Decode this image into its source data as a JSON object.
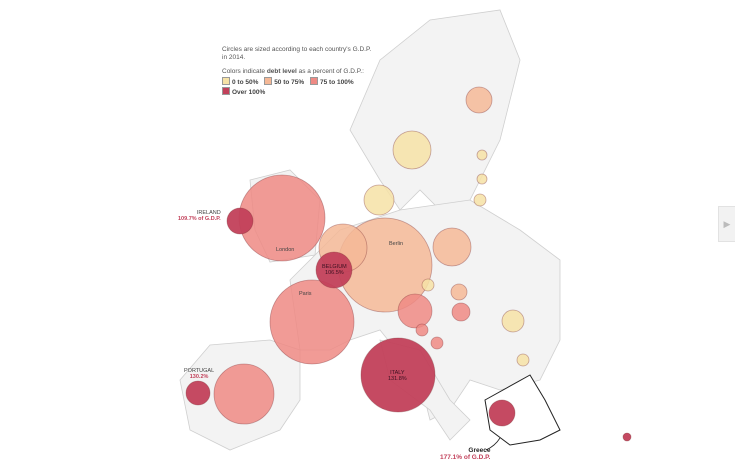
{
  "legend": {
    "size_note": "Circles are sized according to each country's G.D.P. in 2014.",
    "color_note_pre": "Colors indicate ",
    "color_note_bold": "debt level",
    "color_note_post": " as a percent of G.D.P.:",
    "keys": [
      {
        "label": "0 to 50%",
        "color": "#f6e2a6"
      },
      {
        "label": "50 to 75%",
        "color": "#f5b896"
      },
      {
        "label": "75 to 100%",
        "color": "#ee8a84"
      },
      {
        "label": "Over 100%",
        "color": "#c2405a"
      }
    ]
  },
  "labels": {
    "ireland": {
      "name": "IRELAND",
      "value": "109.7% of G.D.P."
    },
    "belgium": {
      "name": "BELGIUM",
      "value": "106.5%"
    },
    "portugal": {
      "name": "PORTUGAL",
      "value": "130.2%"
    },
    "italy": {
      "name": "ITALY",
      "value": "131.8%"
    },
    "greece": {
      "name": "Greece",
      "value": "177.1% of G.D.P."
    },
    "london": "London",
    "paris": "Paris",
    "berlin": "Berlin"
  },
  "countries": [
    {
      "name": "united-kingdom",
      "debt_class": "75 to 100%"
    },
    {
      "name": "ireland",
      "debt_class": "Over 100%"
    },
    {
      "name": "france",
      "debt_class": "75 to 100%"
    },
    {
      "name": "spain",
      "debt_class": "75 to 100%"
    },
    {
      "name": "portugal",
      "debt_class": "Over 100%"
    },
    {
      "name": "italy",
      "debt_class": "Over 100%"
    },
    {
      "name": "germany",
      "debt_class": "50 to 75%"
    },
    {
      "name": "netherlands",
      "debt_class": "50 to 75%"
    },
    {
      "name": "belgium",
      "debt_class": "Over 100%"
    },
    {
      "name": "poland",
      "debt_class": "50 to 75%"
    },
    {
      "name": "sweden",
      "debt_class": "0 to 50%"
    },
    {
      "name": "denmark",
      "debt_class": "0 to 50%"
    },
    {
      "name": "finland",
      "debt_class": "50 to 75%"
    },
    {
      "name": "austria",
      "debt_class": "75 to 100%"
    },
    {
      "name": "czech-republic",
      "debt_class": "0 to 50%"
    },
    {
      "name": "slovakia",
      "debt_class": "50 to 75%"
    },
    {
      "name": "hungary",
      "debt_class": "75 to 100%"
    },
    {
      "name": "slovenia",
      "debt_class": "75 to 100%"
    },
    {
      "name": "croatia",
      "debt_class": "75 to 100%"
    },
    {
      "name": "romania",
      "debt_class": "0 to 50%"
    },
    {
      "name": "bulgaria",
      "debt_class": "0 to 50%"
    },
    {
      "name": "greece",
      "debt_class": "Over 100%"
    },
    {
      "name": "cyprus",
      "debt_class": "Over 100%"
    },
    {
      "name": "estonia",
      "debt_class": "0 to 50%"
    },
    {
      "name": "latvia",
      "debt_class": "0 to 50%"
    },
    {
      "name": "lithuania",
      "debt_class": "0 to 50%"
    },
    {
      "name": "luxembourg",
      "debt_class": "0 to 50%"
    }
  ]
}
